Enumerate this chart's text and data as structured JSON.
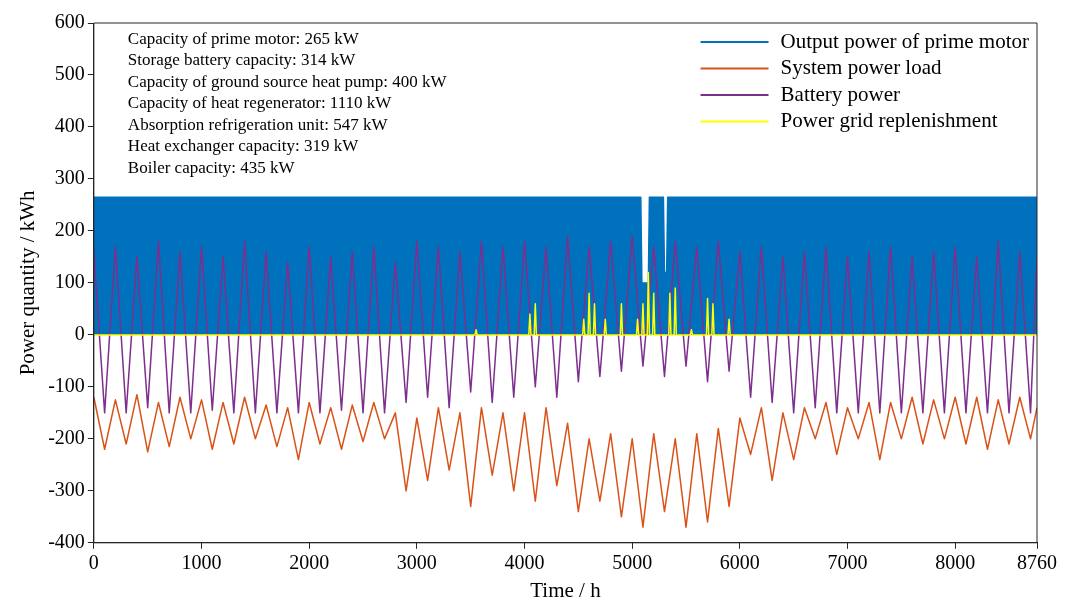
{
  "chart_data": {
    "type": "line",
    "xlabel": "Time / h",
    "ylabel": "Power quantity / kWh",
    "annotations": [
      "Capacity of prime motor: 265 kW",
      "Storage battery capacity: 314 kW",
      "Capacity of ground source heat pump: 400 kW",
      "Capacity of heat regenerator: 1110 kW",
      "Absorption refrigeration unit: 547 kW",
      "Heat exchanger capacity: 319 kW",
      "Boiler capacity: 435 kW"
    ],
    "x": [
      0,
      100,
      200,
      300,
      400,
      500,
      600,
      700,
      800,
      900,
      1000,
      1100,
      1200,
      1300,
      1400,
      1500,
      1600,
      1700,
      1800,
      1900,
      2000,
      2100,
      2200,
      2300,
      2400,
      2500,
      2600,
      2700,
      2800,
      2900,
      3000,
      3100,
      3200,
      3300,
      3400,
      3500,
      3600,
      3700,
      3800,
      3900,
      4000,
      4100,
      4200,
      4300,
      4400,
      4500,
      4600,
      4700,
      4800,
      4900,
      5000,
      5100,
      5200,
      5300,
      5400,
      5500,
      5600,
      5700,
      5800,
      5900,
      6000,
      6100,
      6200,
      6300,
      6400,
      6500,
      6600,
      6700,
      6800,
      6900,
      7000,
      7100,
      7200,
      7300,
      7400,
      7500,
      7600,
      7700,
      7800,
      7900,
      8000,
      8100,
      8200,
      8300,
      8400,
      8500,
      8600,
      8700,
      8760
    ],
    "series": [
      {
        "name": "Output power of prime motor",
        "type": "area",
        "color": "#0072bd",
        "x": [
          0,
          5080,
          5090,
          5150,
          5160,
          5290,
          5300,
          5320,
          5330,
          8760
        ],
        "values": [
          265,
          265,
          100,
          100,
          265,
          265,
          120,
          120,
          265,
          265
        ]
      },
      {
        "name": "System power load",
        "color": "#d95319",
        "values": [
          -120,
          -220,
          -125,
          -210,
          -115,
          -225,
          -130,
          -215,
          -120,
          -200,
          -125,
          -220,
          -130,
          -210,
          -120,
          -200,
          -135,
          -215,
          -140,
          -240,
          -130,
          -210,
          -140,
          -220,
          -135,
          -205,
          -130,
          -200,
          -150,
          -300,
          -160,
          -280,
          -140,
          -260,
          -150,
          -330,
          -140,
          -270,
          -150,
          -300,
          -150,
          -320,
          -140,
          -290,
          -170,
          -340,
          -200,
          -320,
          -190,
          -350,
          -200,
          -370,
          -190,
          -340,
          -200,
          -370,
          -190,
          -360,
          -180,
          -330,
          -160,
          -230,
          -140,
          -280,
          -150,
          -240,
          -140,
          -200,
          -130,
          -230,
          -140,
          -200,
          -130,
          -240,
          -130,
          -200,
          -120,
          -210,
          -125,
          -200,
          -120,
          -210,
          -120,
          -220,
          -125,
          -210,
          -120,
          -200,
          -140
        ]
      },
      {
        "name": "Battery power",
        "color": "#7e2f8e",
        "values": [
          160,
          -150,
          170,
          -150,
          150,
          -140,
          180,
          -150,
          160,
          -150,
          170,
          -145,
          150,
          -150,
          180,
          -150,
          160,
          -150,
          140,
          -150,
          170,
          -150,
          150,
          -145,
          160,
          -150,
          170,
          -150,
          140,
          -130,
          180,
          -120,
          170,
          -140,
          160,
          -110,
          180,
          -130,
          170,
          -120,
          180,
          -100,
          170,
          -120,
          190,
          -90,
          170,
          -80,
          180,
          -70,
          190,
          -60,
          170,
          -80,
          180,
          -60,
          170,
          -90,
          180,
          -70,
          160,
          -120,
          170,
          -130,
          150,
          -150,
          160,
          -140,
          170,
          -150,
          150,
          -150,
          160,
          -150,
          170,
          -150,
          150,
          -150,
          160,
          -150,
          170,
          -150,
          150,
          -150,
          180,
          -150,
          160,
          -150,
          150
        ]
      },
      {
        "name": "Power grid replenishment",
        "color": "#ffff00",
        "x": [
          0,
          3540,
          3550,
          3560,
          4040,
          4050,
          4060,
          4090,
          4100,
          4110,
          4540,
          4550,
          4560,
          4590,
          4600,
          4610,
          4640,
          4650,
          4660,
          4740,
          4750,
          4760,
          4890,
          4900,
          4910,
          5040,
          5050,
          5060,
          5090,
          5100,
          5110,
          5140,
          5150,
          5160,
          5190,
          5200,
          5210,
          5340,
          5350,
          5360,
          5390,
          5400,
          5410,
          5540,
          5550,
          5560,
          5690,
          5700,
          5710,
          5740,
          5750,
          5760,
          5890,
          5900,
          5910,
          8760
        ],
        "values": [
          0,
          0,
          10,
          0,
          0,
          40,
          0,
          0,
          60,
          0,
          0,
          30,
          0,
          0,
          80,
          0,
          0,
          60,
          0,
          0,
          30,
          0,
          0,
          60,
          0,
          0,
          30,
          0,
          0,
          60,
          0,
          0,
          120,
          0,
          0,
          80,
          0,
          0,
          80,
          0,
          0,
          90,
          0,
          0,
          10,
          0,
          0,
          70,
          0,
          0,
          60,
          0,
          0,
          30,
          0,
          0
        ]
      }
    ],
    "xlim": [
      0,
      8760
    ],
    "xticks": [
      0,
      1000,
      2000,
      3000,
      4000,
      5000,
      6000,
      7000,
      8000,
      8760
    ],
    "ylim": [
      -400,
      600
    ],
    "yticks": [
      -400,
      -300,
      -200,
      -100,
      0,
      100,
      200,
      300,
      400,
      500,
      600
    ],
    "grid": false,
    "legend": "top right"
  }
}
